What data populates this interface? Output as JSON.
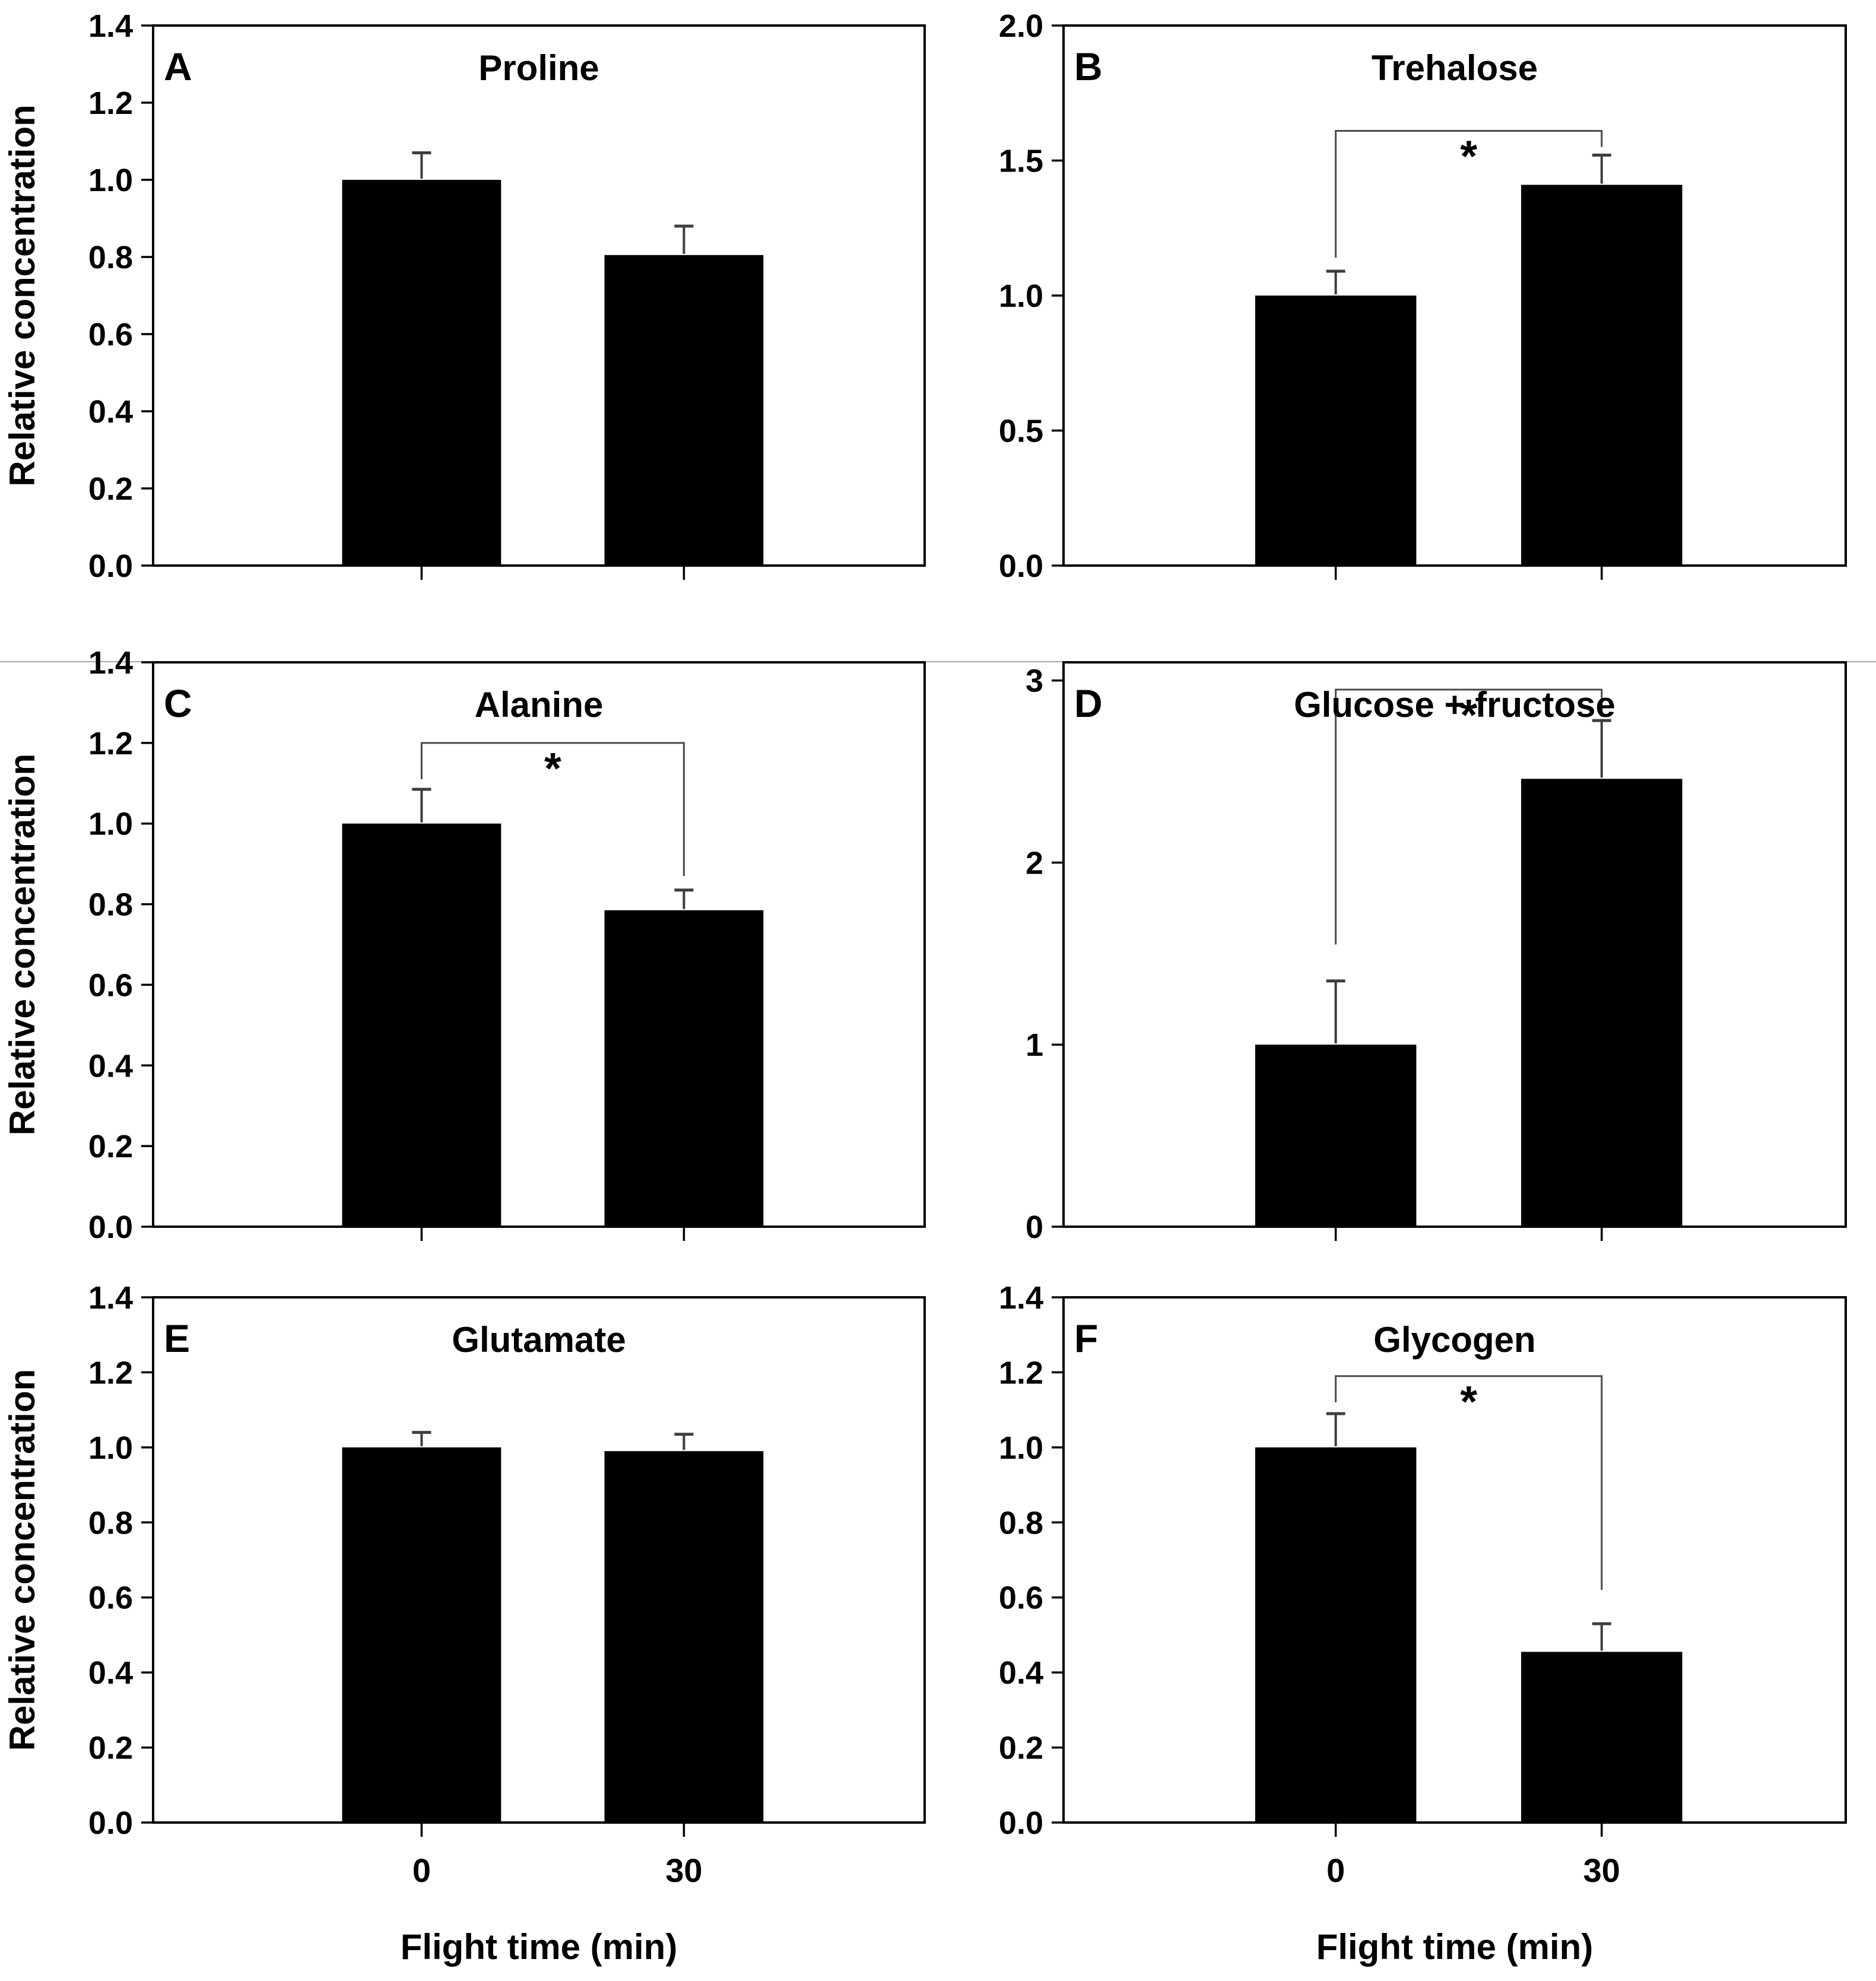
{
  "figure": {
    "background": "#ffffff",
    "bar_color": "#000000",
    "axis_color": "#000000",
    "error_bar_color": "#3d3d3d",
    "bracket_color": "#4a4a4a",
    "text_color": "#000000",
    "ylabel": "Relative concentration",
    "xlabel": "Flight time (min)",
    "x_categories": [
      "0",
      "30"
    ],
    "significance_symbol": "*"
  },
  "chart_data": [
    {
      "panel_label": "A",
      "title": "Proline",
      "type": "bar",
      "categories": [
        "0",
        "30"
      ],
      "values": [
        1.0,
        0.805
      ],
      "errors_plus": [
        0.07,
        0.075
      ],
      "ylim": [
        0,
        1.4
      ],
      "yticks": [
        0,
        0.2,
        0.4,
        0.6,
        0.8,
        1.0,
        1.2,
        1.4
      ],
      "ytick_labels": [
        "0.0",
        "0.2",
        "0.4",
        "0.6",
        "0.8",
        "1.0",
        "1.2",
        "1.4"
      ],
      "ylabel": "Relative concentration",
      "xlabel": "",
      "show_x_tick_labels": false,
      "grid": false,
      "legend": null,
      "significance": null
    },
    {
      "panel_label": "B",
      "title": "Trehalose",
      "type": "bar",
      "categories": [
        "0",
        "30"
      ],
      "values": [
        1.0,
        1.41
      ],
      "errors_plus": [
        0.09,
        0.11
      ],
      "ylim": [
        0,
        2.0
      ],
      "yticks": [
        0,
        0.5,
        1.0,
        1.5,
        2.0
      ],
      "ytick_labels": [
        "0.0",
        "0.5",
        "1.0",
        "1.5",
        "2.0"
      ],
      "ylabel": "",
      "xlabel": "",
      "show_x_tick_labels": false,
      "grid": false,
      "legend": null,
      "significance": {
        "bracket_y": 1.61,
        "drop_left_to": 1.14,
        "drop_right_to": 1.55,
        "label": "*"
      }
    },
    {
      "panel_label": "C",
      "title": "Alanine",
      "type": "bar",
      "categories": [
        "0",
        "30"
      ],
      "values": [
        1.0,
        0.785
      ],
      "errors_plus": [
        0.085,
        0.05
      ],
      "ylim": [
        0,
        1.4
      ],
      "yticks": [
        0,
        0.2,
        0.4,
        0.6,
        0.8,
        1.0,
        1.2,
        1.4
      ],
      "ytick_labels": [
        "0.0",
        "0.2",
        "0.4",
        "0.6",
        "0.8",
        "1.0",
        "1.2",
        "1.4"
      ],
      "ylabel": "Relative concentration",
      "xlabel": "",
      "show_x_tick_labels": false,
      "grid": false,
      "legend": null,
      "significance": {
        "bracket_y": 1.2,
        "drop_left_to": 1.11,
        "drop_right_to": 0.87,
        "label": "*"
      }
    },
    {
      "panel_label": "D",
      "title": "Glucose + fructose",
      "type": "bar",
      "categories": [
        "0",
        "30"
      ],
      "values": [
        1.0,
        2.46
      ],
      "errors_plus": [
        0.35,
        0.32
      ],
      "ylim": [
        0,
        3.1
      ],
      "yticks": [
        0,
        1,
        2,
        3
      ],
      "ytick_labels": [
        "0",
        "1",
        "2",
        "3"
      ],
      "ylabel": "",
      "xlabel": "",
      "show_x_tick_labels": false,
      "grid": false,
      "legend": null,
      "significance": {
        "bracket_y": 2.95,
        "drop_left_to": 1.55,
        "drop_right_to": 2.8,
        "label": "*"
      }
    },
    {
      "panel_label": "E",
      "title": "Glutamate",
      "type": "bar",
      "categories": [
        "0",
        "30"
      ],
      "values": [
        1.0,
        0.99
      ],
      "errors_plus": [
        0.04,
        0.045
      ],
      "ylim": [
        0,
        1.4
      ],
      "yticks": [
        0,
        0.2,
        0.4,
        0.6,
        0.8,
        1.0,
        1.2,
        1.4
      ],
      "ytick_labels": [
        "0.0",
        "0.2",
        "0.4",
        "0.6",
        "0.8",
        "1.0",
        "1.2",
        "1.4"
      ],
      "ylabel": "Relative concentration",
      "xlabel": "Flight time (min)",
      "show_x_tick_labels": true,
      "grid": false,
      "legend": null,
      "significance": null
    },
    {
      "panel_label": "F",
      "title": "Glycogen",
      "type": "bar",
      "categories": [
        "0",
        "30"
      ],
      "values": [
        1.0,
        0.455
      ],
      "errors_plus": [
        0.09,
        0.075
      ],
      "ylim": [
        0,
        1.4
      ],
      "yticks": [
        0,
        0.2,
        0.4,
        0.6,
        0.8,
        1.0,
        1.2,
        1.4
      ],
      "ytick_labels": [
        "0.0",
        "0.2",
        "0.4",
        "0.6",
        "0.8",
        "1.0",
        "1.2",
        "1.4"
      ],
      "ylabel": "",
      "xlabel": "Flight time (min)",
      "show_x_tick_labels": true,
      "grid": false,
      "legend": null,
      "significance": {
        "bracket_y": 1.19,
        "drop_left_to": 1.12,
        "drop_right_to": 0.62,
        "label": "*"
      }
    }
  ]
}
